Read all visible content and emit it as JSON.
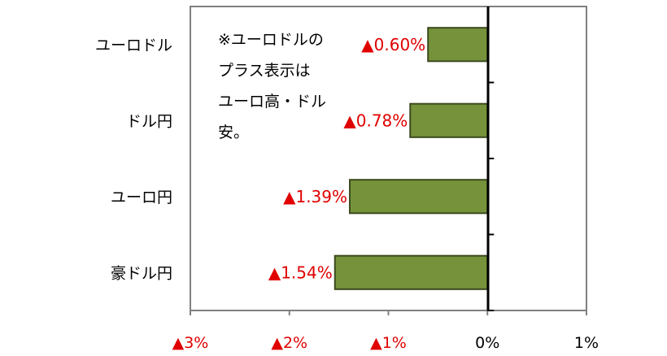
{
  "chart_data": {
    "type": "bar",
    "orientation": "horizontal",
    "title": "",
    "xlabel": "",
    "ylabel": "",
    "categories": [
      "ユーロドル",
      "ドル円",
      "ユーロ円",
      "豪ドル円"
    ],
    "values": [
      -0.6,
      -0.78,
      -1.39,
      -1.54
    ],
    "data_labels": [
      "▲0.60%",
      "▲0.78%",
      "▲1.39%",
      "▲1.54%"
    ],
    "xlim": [
      -3,
      1
    ],
    "xticks": [
      -3,
      -2,
      -1,
      0,
      1
    ],
    "xtick_labels": [
      "▲3%",
      "▲2%",
      "▲1%",
      "0%",
      "1%"
    ],
    "grid": false,
    "annotation": "※ユーロドルの\nプラス表示は\nユーロ高・ドル\n安。"
  },
  "colors": {
    "bar_fill": "#76933c",
    "bar_stroke": "#3b4a1e",
    "negative_label": "#e00000",
    "axis": "#808080",
    "zero_line": "#000000"
  }
}
